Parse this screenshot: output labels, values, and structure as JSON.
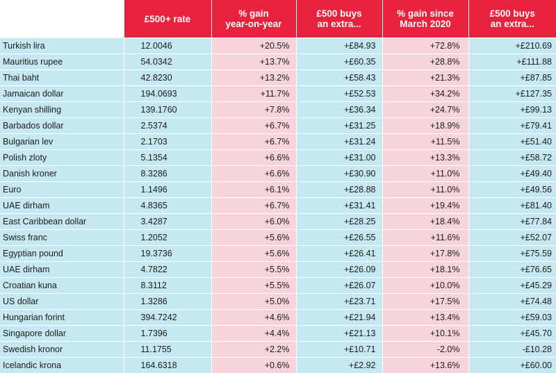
{
  "table": {
    "headers": [
      "",
      "£500+ rate",
      "% gain\nyear-on-year",
      "£500 buys\nan extra...",
      "% gain since\nMarch 2020",
      "£500 buys\nan extra..."
    ],
    "rows": [
      [
        "Turkish lira",
        "12.0046",
        "+20.5%",
        "+£84.93",
        "+72.8%",
        "+£210.69"
      ],
      [
        "Mauritius rupee",
        "54.0342",
        "+13.7%",
        "+£60.35",
        "+28.8%",
        "+£111.88"
      ],
      [
        "Thai baht",
        "42.8230",
        "+13.2%",
        "+£58.43",
        "+21.3%",
        "+£87.85"
      ],
      [
        "Jamaican dollar",
        "194.0693",
        "+11.7%",
        "+£52.53",
        "+34.2%",
        "+£127.35"
      ],
      [
        "Kenyan shilling",
        "139.1760",
        "+7.8%",
        "+£36.34",
        "+24.7%",
        "+£99.13"
      ],
      [
        "Barbados dollar",
        "2.5374",
        "+6.7%",
        "+£31.25",
        "+18.9%",
        "+£79.41"
      ],
      [
        "Bulgarian lev",
        "2.1703",
        "+6.7%",
        "+£31.24",
        "+11.5%",
        "+£51.40"
      ],
      [
        "Polish zloty",
        "5.1354",
        "+6.6%",
        "+£31.00",
        "+13.3%",
        "+£58.72"
      ],
      [
        "Danish kroner",
        "8.3286",
        "+6.6%",
        "+£30.90",
        "+11.0%",
        "+£49.40"
      ],
      [
        "Euro",
        "1.1496",
        "+6.1%",
        "+£28.88",
        "+11.0%",
        "+£49.56"
      ],
      [
        "UAE dirham",
        "4.8365",
        "+6.7%",
        "+£31.41",
        "+19.4%",
        "+£81.40"
      ],
      [
        "East Caribbean dollar",
        "3.4287",
        "+6.0%",
        "+£28.25",
        "+18.4%",
        "+£77.84"
      ],
      [
        "Swiss franc",
        "1.2052",
        "+5.6%",
        "+£26.55",
        "+11.6%",
        "+£52.07"
      ],
      [
        "Egyptian pound",
        "19.3736",
        "+5.6%",
        "+£26.41",
        "+17.8%",
        "+£75.59"
      ],
      [
        "UAE dirham",
        "4.7822",
        "+5.5%",
        "+£26.09",
        "+18.1%",
        "+£76.65"
      ],
      [
        "Croatian kuna",
        "8.3112",
        "+5.5%",
        "+£26.07",
        "+10.0%",
        "+£45.29"
      ],
      [
        "US dollar",
        "1.3286",
        "+5.0%",
        "+£23.71",
        "+17.5%",
        "+£74.48"
      ],
      [
        "Hungarian forint",
        "394.7242",
        "+4.6%",
        "+£21.94",
        "+13.4%",
        "+£59.03"
      ],
      [
        "Singapore dollar",
        "1.7396",
        "+4.4%",
        "+£21.13",
        "+10.1%",
        "+£45.70"
      ],
      [
        "Swedish kronor",
        "11.1755",
        "+2.2%",
        "+£10.71",
        "-2.0%",
        "-£10.28"
      ],
      [
        "Icelandic krona",
        "164.6318",
        "+0.6%",
        "+£2.92",
        "+13.6%",
        "+£60.00"
      ]
    ]
  },
  "colors": {
    "header": "#e8223d",
    "blue_cell": "#c6e8f1",
    "pink_cell": "#f7d3dc"
  }
}
